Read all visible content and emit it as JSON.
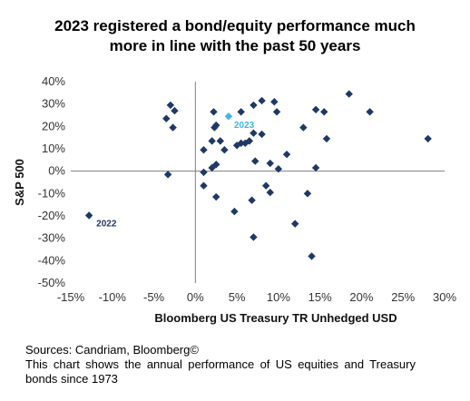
{
  "title": {
    "line1": "2023 registered a bond/equity performance much",
    "line2": "more in line with the past 50 years"
  },
  "footer": {
    "sources": "Sources: Candriam, Bloomberg©",
    "description": "This chart shows the annual performance of US equities and Treasury bonds since 1973"
  },
  "chart_data": {
    "type": "scatter",
    "xlabel": "Bloomberg US Treasury TR Unhedged USD",
    "ylabel": "S&P 500",
    "xlim": [
      -0.15,
      0.3
    ],
    "ylim": [
      -0.5,
      0.4
    ],
    "x_ticks": [
      "-15%",
      "-10%",
      "-5%",
      "0%",
      "5%",
      "10%",
      "15%",
      "20%",
      "25%",
      "30%"
    ],
    "y_ticks": [
      "40%",
      "30%",
      "20%",
      "10%",
      "0%",
      "-10%",
      "-20%",
      "-30%",
      "-40%",
      "-50%"
    ],
    "colors": {
      "points": "#1f3864",
      "highlight": "#41b6e6",
      "axis": "#7f7f7f"
    },
    "points": [
      [
        -0.128,
        -0.198
      ],
      [
        -0.035,
        0.235
      ],
      [
        -0.03,
        0.295
      ],
      [
        -0.027,
        0.195
      ],
      [
        -0.025,
        0.27
      ],
      [
        -0.033,
        -0.015
      ],
      [
        0.01,
        0.095
      ],
      [
        0.01,
        -0.005
      ],
      [
        0.01,
        -0.065
      ],
      [
        0.02,
        0.135
      ],
      [
        0.02,
        0.015
      ],
      [
        0.022,
        0.265
      ],
      [
        0.023,
        0.195
      ],
      [
        0.025,
        0.205
      ],
      [
        0.025,
        0.03
      ],
      [
        0.025,
        -0.115
      ],
      [
        0.03,
        0.135
      ],
      [
        0.035,
        0.095
      ],
      [
        0.047,
        -0.18
      ],
      [
        0.05,
        0.115
      ],
      [
        0.055,
        0.265
      ],
      [
        0.055,
        0.125
      ],
      [
        0.06,
        0.125
      ],
      [
        0.065,
        0.135
      ],
      [
        0.068,
        -0.13
      ],
      [
        0.07,
        0.295
      ],
      [
        0.07,
        0.17
      ],
      [
        0.07,
        -0.295
      ],
      [
        0.072,
        0.045
      ],
      [
        0.08,
        0.315
      ],
      [
        0.08,
        0.165
      ],
      [
        0.085,
        -0.065
      ],
      [
        0.09,
        0.035
      ],
      [
        0.09,
        -0.095
      ],
      [
        0.095,
        0.31
      ],
      [
        0.098,
        0.265
      ],
      [
        0.1,
        0.01
      ],
      [
        0.11,
        0.075
      ],
      [
        0.12,
        -0.235
      ],
      [
        0.13,
        0.195
      ],
      [
        0.135,
        -0.1
      ],
      [
        0.14,
        -0.38
      ],
      [
        0.145,
        0.275
      ],
      [
        0.145,
        0.015
      ],
      [
        0.155,
        0.265
      ],
      [
        0.158,
        0.145
      ],
      [
        0.185,
        0.345
      ],
      [
        0.21,
        0.265
      ],
      [
        0.28,
        0.145
      ]
    ],
    "highlights": [
      {
        "label": "2023",
        "x": 0.04,
        "y": 0.245
      }
    ],
    "annotations": [
      {
        "label": "2022",
        "x": -0.128,
        "y": -0.198
      }
    ]
  }
}
